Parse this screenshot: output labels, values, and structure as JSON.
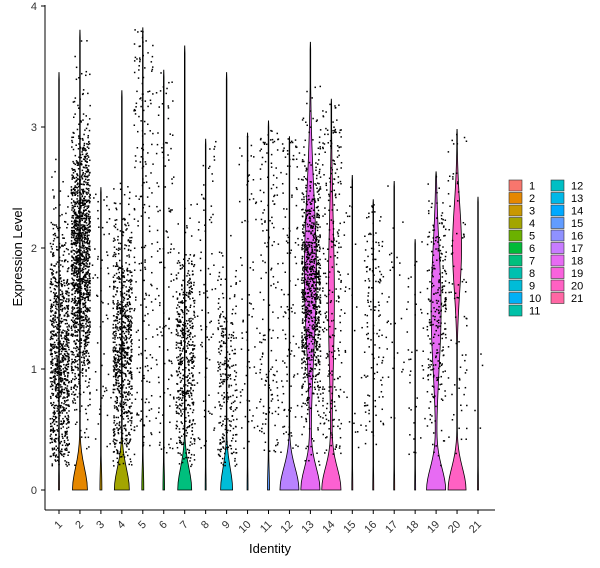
{
  "chart_data": {
    "type": "violin",
    "xlabel": "Identity",
    "ylabel": "Expression Level",
    "ylim": [
      0,
      4
    ],
    "yticks": [
      "0",
      "1",
      "2",
      "3",
      "4"
    ],
    "legend_placement": "right",
    "grid": false,
    "categories": [
      "1",
      "2",
      "3",
      "4",
      "5",
      "6",
      "7",
      "8",
      "9",
      "10",
      "11",
      "12",
      "13",
      "14",
      "15",
      "16",
      "17",
      "18",
      "19",
      "20",
      "21"
    ],
    "colors": [
      "#F8766D",
      "#E58700",
      "#C99800",
      "#A3A500",
      "#6BB100",
      "#00BA38",
      "#00BF7D",
      "#00C0AF",
      "#00BCD8",
      "#00B0F6",
      "#619CFF",
      "#B983FF",
      "#E76BF3",
      "#FD61D1",
      "#FF67A4",
      "#FF6C91",
      "#F8766D",
      "#C77CFF",
      "#E76BF3",
      "#FF61C3",
      "#FF6A98"
    ],
    "legend_colors": [
      "#F8766D",
      "#E58700",
      "#C99800",
      "#A3A500",
      "#6BB100",
      "#00BA38",
      "#00BF7D",
      "#00C0AF",
      "#00BCD8",
      "#00B0F6",
      "#00C1A8",
      "#00BFC4",
      "#00B8E7",
      "#00A9FF",
      "#619CFF",
      "#8F91FF",
      "#C77CFF",
      "#E76BF3",
      "#F962DD",
      "#FF61C3",
      "#FF67A4"
    ],
    "max_values": [
      3.45,
      3.8,
      2.5,
      3.3,
      3.82,
      3.47,
      3.67,
      2.9,
      3.45,
      2.95,
      3.05,
      2.92,
      3.7,
      3.23,
      2.6,
      2.4,
      2.55,
      2.07,
      2.63,
      2.98,
      2.42
    ],
    "upper_density": [
      0.0,
      0.0,
      0.0,
      0.0,
      0.0,
      0.0,
      0.0,
      0.0,
      0.0,
      0.0,
      0.0,
      0.0,
      0.6,
      0.3,
      0.0,
      0.0,
      0.0,
      0.0,
      0.5,
      0.45,
      0.0
    ],
    "base_density": [
      0.05,
      0.75,
      0.1,
      0.75,
      0.1,
      0.08,
      0.7,
      0.05,
      0.6,
      0.05,
      0.1,
      0.95,
      0.95,
      0.95,
      0.05,
      0.05,
      0.05,
      0.05,
      0.95,
      0.9,
      0.05
    ],
    "point_counts": [
      900,
      1400,
      60,
      800,
      200,
      120,
      500,
      80,
      260,
      70,
      160,
      120,
      900,
      260,
      30,
      140,
      30,
      40,
      260,
      80,
      4
    ]
  }
}
